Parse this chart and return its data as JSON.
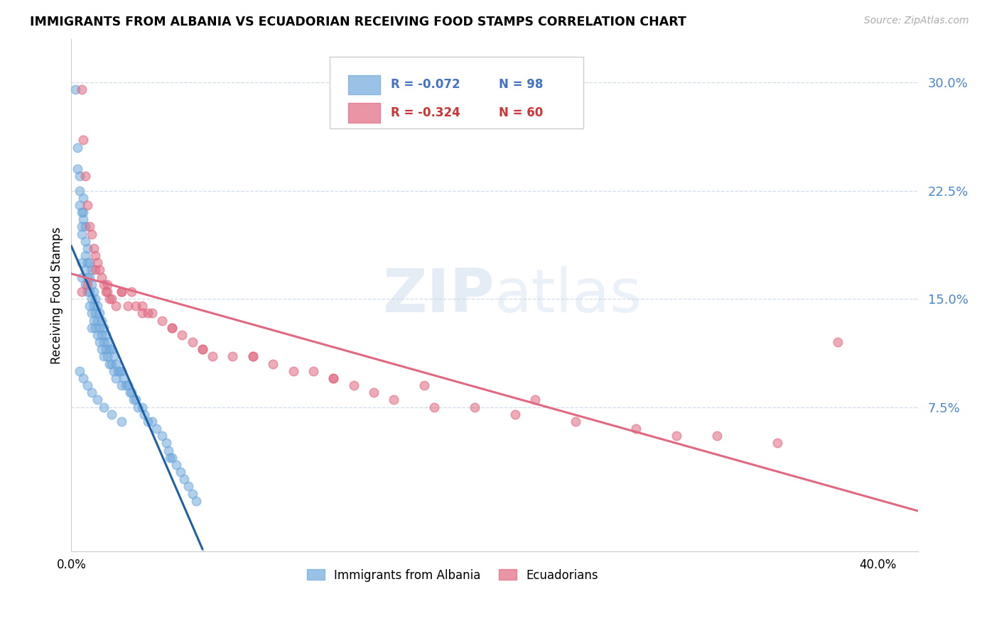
{
  "title": "IMMIGRANTS FROM ALBANIA VS ECUADORIAN RECEIVING FOOD STAMPS CORRELATION CHART",
  "source": "Source: ZipAtlas.com",
  "ylabel": "Receiving Food Stamps",
  "xlim": [
    0.0,
    0.42
  ],
  "ylim": [
    -0.025,
    0.33
  ],
  "ytick_vals": [
    0.075,
    0.15,
    0.225,
    0.3
  ],
  "ytick_labels": [
    "7.5%",
    "15.0%",
    "22.5%",
    "30.0%"
  ],
  "xtick_vals": [
    0.0,
    0.4
  ],
  "xtick_labels": [
    "0.0%",
    "40.0%"
  ],
  "legend_R1": "R = -0.072",
  "legend_N1": "N = 98",
  "legend_R2": "R = -0.324",
  "legend_N2": "N = 60",
  "legend_label1": "Immigrants from Albania",
  "legend_label2": "Ecuadorians",
  "watermark_zip": "ZIP",
  "watermark_atlas": "atlas",
  "blue_color": "#6fa8dc",
  "pink_color": "#e06880",
  "blue_line_color": "#1f5fa6",
  "pink_line_color": "#e06880",
  "dash_color": "#aec6e8",
  "albania_x": [
    0.002,
    0.003,
    0.003,
    0.004,
    0.004,
    0.004,
    0.005,
    0.005,
    0.005,
    0.005,
    0.005,
    0.006,
    0.006,
    0.006,
    0.007,
    0.007,
    0.007,
    0.007,
    0.007,
    0.008,
    0.008,
    0.008,
    0.008,
    0.009,
    0.009,
    0.009,
    0.009,
    0.01,
    0.01,
    0.01,
    0.01,
    0.01,
    0.011,
    0.011,
    0.011,
    0.012,
    0.012,
    0.012,
    0.013,
    0.013,
    0.013,
    0.014,
    0.014,
    0.014,
    0.015,
    0.015,
    0.015,
    0.016,
    0.016,
    0.016,
    0.017,
    0.017,
    0.018,
    0.018,
    0.019,
    0.019,
    0.02,
    0.02,
    0.021,
    0.021,
    0.022,
    0.022,
    0.023,
    0.024,
    0.025,
    0.025,
    0.026,
    0.027,
    0.028,
    0.029,
    0.03,
    0.031,
    0.032,
    0.033,
    0.035,
    0.036,
    0.038,
    0.04,
    0.042,
    0.045,
    0.047,
    0.048,
    0.049,
    0.05,
    0.052,
    0.054,
    0.056,
    0.058,
    0.06,
    0.062,
    0.004,
    0.006,
    0.008,
    0.01,
    0.013,
    0.016,
    0.02,
    0.025
  ],
  "albania_y": [
    0.295,
    0.255,
    0.24,
    0.235,
    0.225,
    0.215,
    0.21,
    0.2,
    0.195,
    0.175,
    0.165,
    0.22,
    0.21,
    0.205,
    0.2,
    0.19,
    0.18,
    0.17,
    0.16,
    0.185,
    0.175,
    0.165,
    0.155,
    0.175,
    0.165,
    0.155,
    0.145,
    0.17,
    0.16,
    0.15,
    0.14,
    0.13,
    0.155,
    0.145,
    0.135,
    0.15,
    0.14,
    0.13,
    0.145,
    0.135,
    0.125,
    0.14,
    0.13,
    0.12,
    0.135,
    0.125,
    0.115,
    0.13,
    0.12,
    0.11,
    0.125,
    0.115,
    0.12,
    0.11,
    0.115,
    0.105,
    0.115,
    0.105,
    0.11,
    0.1,
    0.105,
    0.095,
    0.1,
    0.1,
    0.1,
    0.09,
    0.095,
    0.09,
    0.09,
    0.085,
    0.085,
    0.08,
    0.08,
    0.075,
    0.075,
    0.07,
    0.065,
    0.065,
    0.06,
    0.055,
    0.05,
    0.045,
    0.04,
    0.04,
    0.035,
    0.03,
    0.025,
    0.02,
    0.015,
    0.01,
    0.1,
    0.095,
    0.09,
    0.085,
    0.08,
    0.075,
    0.07,
    0.065
  ],
  "ecuador_x": [
    0.005,
    0.006,
    0.007,
    0.008,
    0.009,
    0.01,
    0.011,
    0.012,
    0.013,
    0.014,
    0.015,
    0.016,
    0.017,
    0.018,
    0.019,
    0.02,
    0.022,
    0.025,
    0.028,
    0.03,
    0.032,
    0.035,
    0.038,
    0.04,
    0.045,
    0.05,
    0.055,
    0.06,
    0.065,
    0.07,
    0.08,
    0.09,
    0.1,
    0.11,
    0.12,
    0.13,
    0.14,
    0.15,
    0.16,
    0.18,
    0.2,
    0.22,
    0.25,
    0.28,
    0.3,
    0.35,
    0.38,
    0.005,
    0.008,
    0.012,
    0.018,
    0.025,
    0.035,
    0.05,
    0.065,
    0.09,
    0.13,
    0.175,
    0.23,
    0.32
  ],
  "ecuador_y": [
    0.295,
    0.26,
    0.235,
    0.215,
    0.2,
    0.195,
    0.185,
    0.18,
    0.175,
    0.17,
    0.165,
    0.16,
    0.155,
    0.155,
    0.15,
    0.15,
    0.145,
    0.155,
    0.145,
    0.155,
    0.145,
    0.145,
    0.14,
    0.14,
    0.135,
    0.13,
    0.125,
    0.12,
    0.115,
    0.11,
    0.11,
    0.11,
    0.105,
    0.1,
    0.1,
    0.095,
    0.09,
    0.085,
    0.08,
    0.075,
    0.075,
    0.07,
    0.065,
    0.06,
    0.055,
    0.05,
    0.12,
    0.155,
    0.16,
    0.17,
    0.16,
    0.155,
    0.14,
    0.13,
    0.115,
    0.11,
    0.095,
    0.09,
    0.08,
    0.055
  ]
}
